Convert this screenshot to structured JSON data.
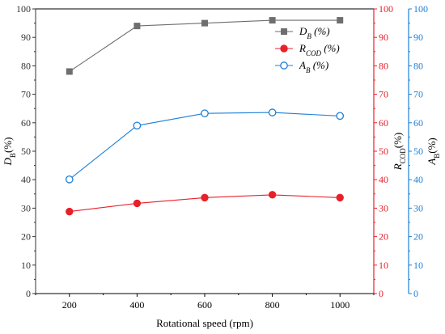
{
  "chart_data": {
    "type": "line",
    "categories": [
      200,
      400,
      600,
      800,
      1000
    ],
    "xlabel": "Rotational speed (rpm)",
    "xlim": [
      100,
      1100
    ],
    "grid": false,
    "legend_position": "top-right",
    "axes": [
      {
        "id": "left",
        "label_main": "D",
        "label_sub": "B",
        "label_suffix": "(%)",
        "ylim": [
          0,
          100
        ],
        "ticks": [
          0,
          10,
          20,
          30,
          40,
          50,
          60,
          70,
          80,
          90,
          100
        ],
        "color": "#333333"
      },
      {
        "id": "right1",
        "label_main": "R",
        "label_sub": "COD",
        "label_suffix": "(%)",
        "ylim": [
          0,
          100
        ],
        "ticks": [
          0,
          10,
          20,
          30,
          40,
          50,
          60,
          70,
          80,
          90,
          100
        ],
        "color": "#e8202a"
      },
      {
        "id": "right2",
        "label_main": "A",
        "label_sub": "B",
        "label_suffix": "(%)",
        "ylim": [
          0,
          100
        ],
        "ticks": [
          0,
          10,
          20,
          30,
          40,
          50,
          60,
          70,
          80,
          90,
          100
        ],
        "color": "#1d7fd6"
      }
    ],
    "series": [
      {
        "name_main": "D",
        "name_sub": "B",
        "name_suffix": " (%)",
        "axis": "left",
        "marker": "square",
        "color": "#6e6e6e",
        "values": [
          78,
          94,
          95,
          96,
          96
        ]
      },
      {
        "name_main": "R",
        "name_sub": "COD",
        "name_suffix": " (%)",
        "axis": "right1",
        "marker": "circle-filled",
        "color": "#e8202a",
        "values": [
          28.8,
          31.7,
          33.7,
          34.7,
          33.7
        ]
      },
      {
        "name_main": "A",
        "name_sub": "B",
        "name_suffix": " (%)",
        "axis": "right2",
        "marker": "circle-open",
        "color": "#1d7fd6",
        "values": [
          40.1,
          59.0,
          63.3,
          63.6,
          62.4
        ]
      }
    ]
  }
}
